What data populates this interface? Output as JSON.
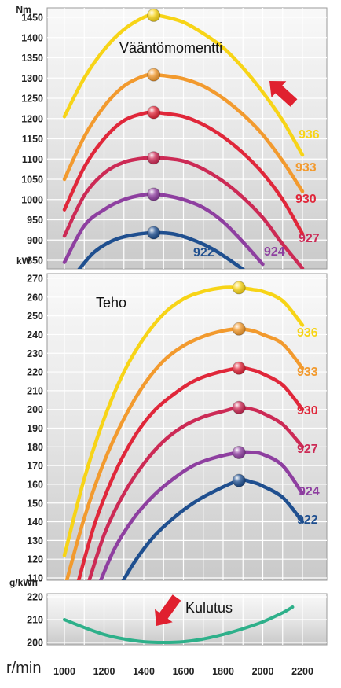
{
  "colors": {
    "936": "#f7d417",
    "933": "#f29a2e",
    "930": "#e0273a",
    "927": "#cc2a55",
    "924": "#8e3fa0",
    "922": "#1f4f8f",
    "kulutus": "#2eb08a",
    "arrow": "#e0202f"
  },
  "x_axis": {
    "unit": "r/min",
    "ticks": [
      "1000",
      "1200",
      "1400",
      "1600",
      "1800",
      "2000",
      "2200"
    ]
  },
  "chart_data": [
    {
      "type": "line",
      "title": "Vääntömomentti",
      "unit": "Nm",
      "ylim": [
        825,
        1475
      ],
      "yticks": [
        "1450",
        "1400",
        "1350",
        "1300",
        "1250",
        "1200",
        "1150",
        "1100",
        "1050",
        "1000",
        "950",
        "900",
        "850"
      ],
      "bottom_label": "kW",
      "grid": true,
      "series": [
        {
          "name": "936",
          "x": [
            1000,
            1100,
            1200,
            1300,
            1400,
            1450,
            1500,
            1600,
            1700,
            1800,
            1900,
            2000,
            2100,
            2200
          ],
          "y": [
            1205,
            1300,
            1370,
            1420,
            1450,
            1455,
            1452,
            1438,
            1410,
            1375,
            1325,
            1265,
            1195,
            1110
          ]
        },
        {
          "name": "933",
          "x": [
            1000,
            1100,
            1200,
            1300,
            1400,
            1450,
            1500,
            1600,
            1700,
            1800,
            1900,
            2000,
            2100,
            2200
          ],
          "y": [
            1050,
            1155,
            1230,
            1280,
            1305,
            1308,
            1306,
            1298,
            1280,
            1250,
            1210,
            1160,
            1095,
            1020
          ]
        },
        {
          "name": "930",
          "x": [
            1000,
            1100,
            1200,
            1300,
            1400,
            1450,
            1500,
            1600,
            1700,
            1800,
            1900,
            2000,
            2100,
            2200
          ],
          "y": [
            975,
            1080,
            1150,
            1195,
            1213,
            1215,
            1213,
            1205,
            1185,
            1155,
            1115,
            1065,
            1000,
            915
          ]
        },
        {
          "name": "927",
          "x": [
            1000,
            1100,
            1200,
            1300,
            1400,
            1450,
            1500,
            1600,
            1700,
            1800,
            1900,
            2000,
            2100,
            2200
          ],
          "y": [
            910,
            1010,
            1065,
            1092,
            1102,
            1103,
            1102,
            1095,
            1075,
            1045,
            1005,
            955,
            890,
            830
          ]
        },
        {
          "name": "924",
          "x": [
            1000,
            1100,
            1200,
            1300,
            1400,
            1450,
            1500,
            1600,
            1700,
            1800,
            1900,
            2000
          ],
          "y": [
            845,
            935,
            975,
            1000,
            1012,
            1013,
            1011,
            1000,
            980,
            945,
            895,
            840
          ]
        },
        {
          "name": "922",
          "x": [
            1070,
            1150,
            1250,
            1350,
            1450,
            1550,
            1650,
            1750,
            1850,
            1920
          ],
          "y": [
            825,
            870,
            900,
            913,
            918,
            915,
            900,
            877,
            845,
            820
          ]
        }
      ],
      "markers": [
        {
          "series": "936",
          "x": 1450,
          "y": 1455
        },
        {
          "series": "933",
          "x": 1450,
          "y": 1308
        },
        {
          "series": "930",
          "x": 1450,
          "y": 1215
        },
        {
          "series": "927",
          "x": 1450,
          "y": 1103
        },
        {
          "series": "924",
          "x": 1450,
          "y": 1013
        },
        {
          "series": "922",
          "x": 1450,
          "y": 918
        }
      ]
    },
    {
      "type": "line",
      "title": "Teho",
      "ylim": [
        100,
        270
      ],
      "yticks": [
        "270",
        "260",
        "250",
        "240",
        "230",
        "220",
        "210",
        "200",
        "190",
        "180",
        "170",
        "160",
        "150",
        "140",
        "130",
        "120",
        "110"
      ],
      "bottom_label": "g/kWh",
      "grid": true,
      "series": [
        {
          "name": "936",
          "x": [
            1000,
            1100,
            1200,
            1300,
            1400,
            1500,
            1600,
            1700,
            1800,
            1880,
            1950,
            2000,
            2100,
            2200
          ],
          "y": [
            122,
            163,
            195,
            220,
            238,
            251,
            259,
            263,
            265,
            265,
            264,
            263,
            258,
            245
          ]
        },
        {
          "name": "933",
          "x": [
            1000,
            1100,
            1200,
            1300,
            1400,
            1500,
            1600,
            1700,
            1800,
            1880,
            1950,
            2000,
            2100,
            2200
          ],
          "y": [
            104,
            142,
            172,
            195,
            213,
            226,
            234,
            239,
            242,
            243,
            242,
            240,
            235,
            222
          ]
        },
        {
          "name": "930",
          "x": [
            1050,
            1150,
            1250,
            1350,
            1450,
            1550,
            1650,
            1750,
            1880,
            1950,
            2000,
            2100,
            2200
          ],
          "y": [
            100,
            138,
            165,
            185,
            199,
            208,
            215,
            219,
            222,
            221,
            219,
            213,
            200
          ]
        },
        {
          "name": "927",
          "x": [
            1100,
            1200,
            1300,
            1400,
            1500,
            1600,
            1700,
            1800,
            1880,
            1950,
            2000,
            2100,
            2200
          ],
          "y": [
            100,
            133,
            155,
            171,
            183,
            191,
            196,
            199,
            201,
            200,
            198,
            192,
            180
          ]
        },
        {
          "name": "924",
          "x": [
            1150,
            1250,
            1350,
            1450,
            1550,
            1650,
            1750,
            1880,
            1950,
            2000,
            2100,
            2200
          ],
          "y": [
            100,
            125,
            142,
            154,
            163,
            170,
            174,
            177,
            177,
            176,
            170,
            155
          ]
        },
        {
          "name": "922",
          "x": [
            1250,
            1350,
            1450,
            1550,
            1650,
            1750,
            1880,
            1950,
            2000,
            2100,
            2200
          ],
          "y": [
            100,
            118,
            132,
            142,
            150,
            156,
            162,
            161,
            159,
            153,
            140
          ]
        }
      ],
      "markers": [
        {
          "series": "936",
          "x": 1880,
          "y": 265
        },
        {
          "series": "933",
          "x": 1880,
          "y": 243
        },
        {
          "series": "930",
          "x": 1880,
          "y": 222
        },
        {
          "series": "927",
          "x": 1880,
          "y": 201
        },
        {
          "series": "924",
          "x": 1880,
          "y": 177
        },
        {
          "series": "922",
          "x": 1880,
          "y": 162
        }
      ]
    },
    {
      "type": "line",
      "title": "Kulutus",
      "ylim": [
        193,
        222
      ],
      "yticks": [
        "220",
        "210",
        "200"
      ],
      "grid": true,
      "series": [
        {
          "name": "kulutus",
          "x": [
            1000,
            1100,
            1200,
            1300,
            1400,
            1500,
            1600,
            1700,
            1800,
            1900,
            2000,
            2100,
            2150
          ],
          "y": [
            210,
            206.5,
            203.5,
            201.5,
            200.3,
            200,
            200.3,
            201.5,
            203.5,
            206,
            209,
            213,
            215.5
          ]
        }
      ]
    }
  ]
}
